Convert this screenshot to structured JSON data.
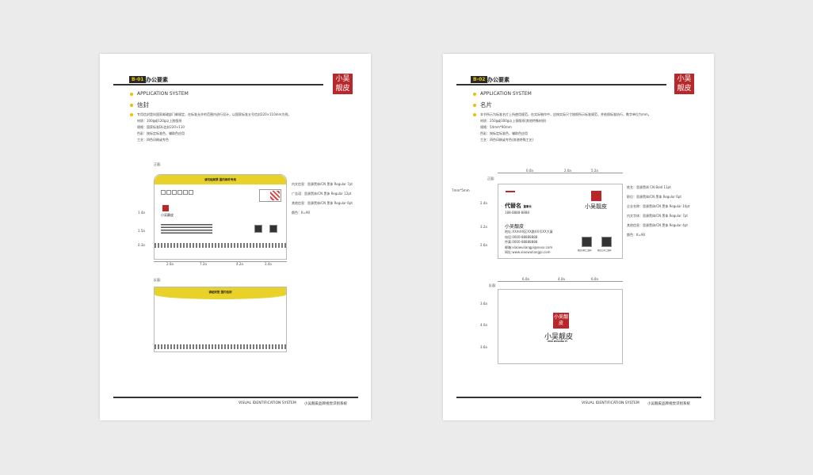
{
  "pages": [
    {
      "badge": "B-01",
      "title": "办公要素",
      "section_en": "APPLICATION SYSTEM",
      "section_cn": "信封",
      "desc": [
        "专用信封是向国家邮政部门邮规定，在标准允许的范围内进行设计，以国家标准五号信封220×110mm为例。",
        "材质：100g或120g以上胶版纸",
        "规格：国家标准DL信封220×110",
        "色彩：按标定标准色，辅助色应用",
        "工艺：四色印刷或专色"
      ],
      "front_label": "正面:",
      "back_label": "反面:",
      "envelope_band": "请勿贴邮票 国内邮件专用",
      "back_band": "请贴封签 国内信封",
      "specs": [
        "内文信息：思源黑体/CN 黑体 Regular 7pt",
        "广告语：思源黑体/CN 黑体 Regular 12pt",
        "其他信息：思源黑体/CN 黑体 Regular 6pt",
        "颜色：K=90"
      ],
      "ruler_x": [
        "2.0a",
        "7.2a",
        "4.2a",
        "3.4a"
      ],
      "ruler_y": [
        "1.4a",
        "1.5a",
        "0.3a"
      ],
      "footer_en": "VISUAL IDENTIFICATION SYSTEM",
      "footer_cn": "小吴靓皮品牌视觉识别系统"
    },
    {
      "badge": "B-02",
      "title": "办公要素",
      "section_en": "APPLICATION SYSTEM",
      "section_cn": "名片",
      "desc": [
        "本节所示为标准名片上所使用规范。在实际制作中，应按实际尺寸按照所示标准规范，并依照标准执行，数字单位为mm。",
        "材质：250g或300g以上铜版纸(其他特殊材质)",
        "规格：54mm*90mm",
        "色彩：按标定标准色，辅助色应用",
        "工艺：四色印刷或专色(其他特殊工艺)"
      ],
      "front_label": "正面:",
      "back_label": "反面:",
      "margin_label": "7mm*5mm",
      "card": {
        "name": "代替名",
        "title": "董事长",
        "phone": "188-8888-8888",
        "company": "小吴靓皮",
        "address": "地址:XX市XX区XX路XX号XX大厦",
        "tel": "电话:0000-88888888",
        "fax": "传真:0000-88888888",
        "email": "邮箱:xiaowuliangpi@xxxx.com",
        "web": "网址:www.xiaowuliangpi.com",
        "qr1": "微信扫码二维码",
        "qr2": "微信公众二维码"
      },
      "specs": [
        "姓名：思源黑体 CN Bold 11pt",
        "职位：思源黑体/CN 黑体 Regular 6pt",
        "企业名称：思源黑体/CN 黑体 Regular 10pt",
        "内文字体：思源黑体/CN 黑体 Regular 7pt",
        "其他信息：思源黑体/CN 黑体 Regular 4pt",
        "颜色：K=90"
      ],
      "ruler_x": [
        "0.0a",
        "2.0a",
        "5.2a"
      ],
      "ruler_y": [
        "2.4a",
        "3.2a",
        "2.6a"
      ],
      "back_ruler_x": [
        "6.0a",
        "4.0a",
        "6.0a"
      ],
      "back_ruler_y": [
        "3.6a",
        "4.0a",
        "3.6a"
      ],
      "footer_en": "VISUAL IDENTIFICATION SYSTEM",
      "footer_cn": "小吴靓皮品牌视觉识别系统"
    }
  ],
  "brand": {
    "name": "小吴靓皮",
    "seal": "小吴靓皮",
    "tagline": "XIAO WULIANG PI",
    "color": "#b8282a"
  },
  "colors": {
    "accent": "#e8d22a",
    "seal": "#b8282a"
  }
}
